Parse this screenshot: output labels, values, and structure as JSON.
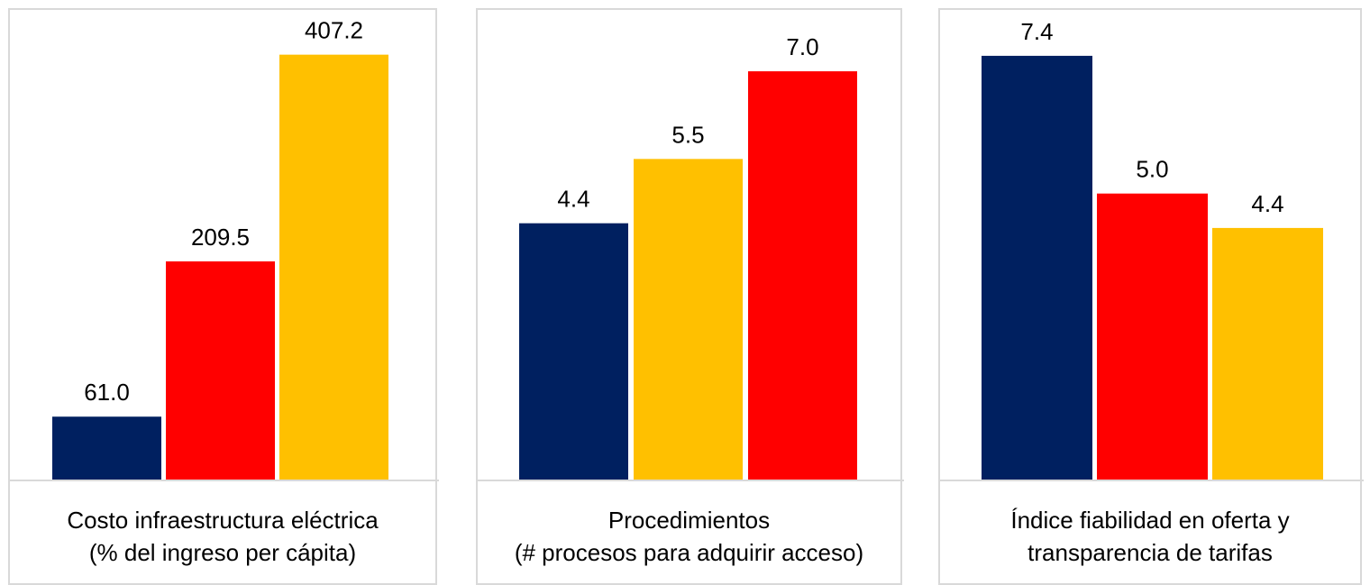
{
  "colors": {
    "navy": "#002060",
    "red": "#ff0000",
    "gold": "#ffc000",
    "axis": "#d9d9d9"
  },
  "chart_data": [
    {
      "type": "bar",
      "xlabel_lines": [
        "Costo infraestructura eléctrica",
        "(% del ingreso per cápita)"
      ],
      "bars": [
        {
          "label": "61.0",
          "value": 61.0,
          "color": "#002060"
        },
        {
          "label": "209.5",
          "value": 209.5,
          "color": "#ff0000"
        },
        {
          "label": "407.2",
          "value": 407.2,
          "color": "#ffc000"
        }
      ],
      "ylim": [
        0,
        450
      ],
      "grid": false
    },
    {
      "type": "bar",
      "xlabel_lines": [
        "Procedimientos",
        "(# procesos para adquirir acceso)"
      ],
      "bars": [
        {
          "label": "4.4",
          "value": 4.4,
          "color": "#002060"
        },
        {
          "label": "5.5",
          "value": 5.5,
          "color": "#ffc000"
        },
        {
          "label": "7.0",
          "value": 7.0,
          "color": "#ff0000"
        }
      ],
      "ylim": [
        0,
        8.05
      ],
      "grid": false
    },
    {
      "type": "bar",
      "xlabel_lines": [
        "Índice fiabilidad en oferta y",
        "transparencia de tarifas"
      ],
      "bars": [
        {
          "label": "7.4",
          "value": 7.4,
          "color": "#002060"
        },
        {
          "label": "5.0",
          "value": 5.0,
          "color": "#ff0000"
        },
        {
          "label": "4.4",
          "value": 4.4,
          "color": "#ffc000"
        }
      ],
      "ylim": [
        0,
        8.2
      ],
      "grid": false
    }
  ]
}
